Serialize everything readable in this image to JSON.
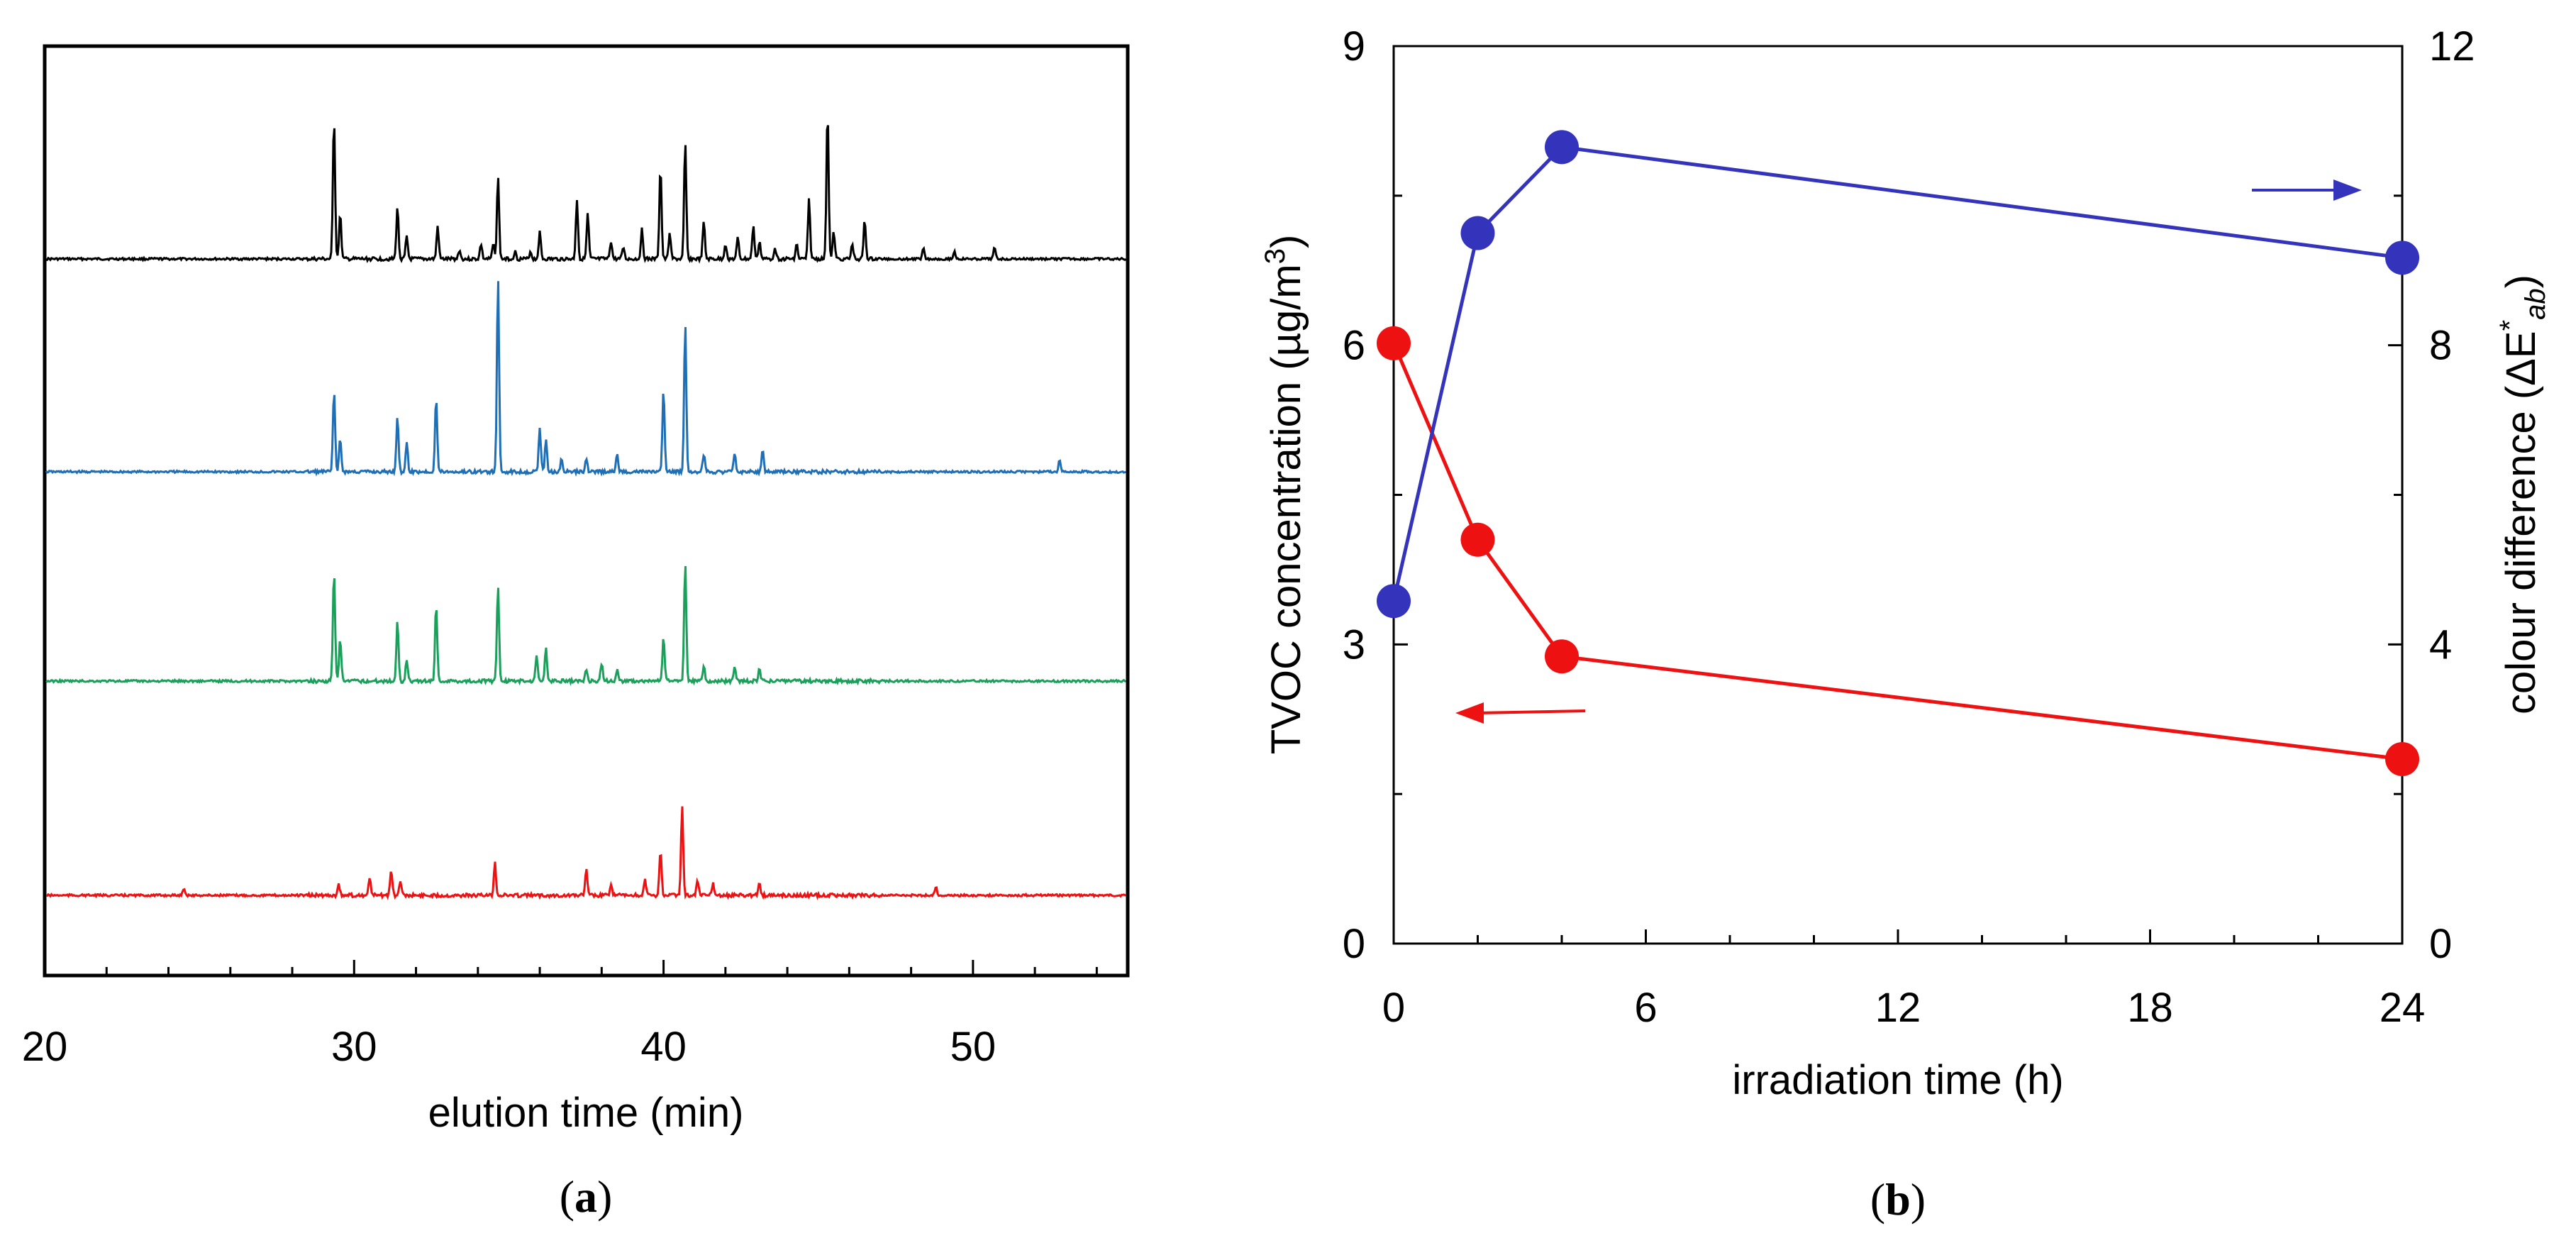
{
  "chart_data": [
    {
      "type": "line",
      "panel": "a",
      "panel_label": {
        "open": "(",
        "letter": "a",
        "close": ")"
      },
      "title": "",
      "xlabel": "elution time (min)",
      "ylabel": "",
      "xlim": [
        20,
        55
      ],
      "xticks": [
        "20",
        "30",
        "40",
        "50"
      ],
      "yticks": [],
      "series": [
        {
          "name": "trace-black",
          "color": "#000000",
          "baseline": 0.0,
          "peaks": [
            [
              29.35,
              95
            ],
            [
              29.55,
              30
            ],
            [
              31.4,
              35
            ],
            [
              31.7,
              15
            ],
            [
              32.7,
              22
            ],
            [
              33.4,
              6
            ],
            [
              34.1,
              10
            ],
            [
              34.5,
              10
            ],
            [
              34.65,
              55
            ],
            [
              35.2,
              5
            ],
            [
              35.7,
              5
            ],
            [
              36.0,
              18
            ],
            [
              37.2,
              40
            ],
            [
              37.55,
              30
            ],
            [
              38.3,
              12
            ],
            [
              38.7,
              8
            ],
            [
              39.3,
              20
            ],
            [
              39.9,
              62
            ],
            [
              40.2,
              18
            ],
            [
              40.7,
              78
            ],
            [
              41.3,
              25
            ],
            [
              42.0,
              10
            ],
            [
              42.4,
              14
            ],
            [
              42.9,
              22
            ],
            [
              43.1,
              12
            ],
            [
              43.6,
              8
            ],
            [
              44.3,
              10
            ],
            [
              44.7,
              40
            ],
            [
              45.3,
              100
            ],
            [
              45.5,
              18
            ],
            [
              46.1,
              10
            ],
            [
              46.5,
              26
            ],
            [
              48.4,
              8
            ],
            [
              49.4,
              5
            ],
            [
              50.7,
              8
            ]
          ]
        },
        {
          "name": "trace-blue",
          "color": "#1f6fb6",
          "baseline": 0.0,
          "peaks": [
            [
              29.35,
              55
            ],
            [
              29.55,
              22
            ],
            [
              31.4,
              38
            ],
            [
              31.7,
              20
            ],
            [
              32.65,
              50
            ],
            [
              34.65,
              130
            ],
            [
              36.0,
              30
            ],
            [
              36.2,
              22
            ],
            [
              36.7,
              8
            ],
            [
              37.5,
              10
            ],
            [
              38.5,
              12
            ],
            [
              40.0,
              55
            ],
            [
              40.7,
              100
            ],
            [
              41.3,
              12
            ],
            [
              42.3,
              12
            ],
            [
              43.2,
              15
            ],
            [
              52.8,
              8
            ]
          ]
        },
        {
          "name": "trace-green",
          "color": "#1aa05a",
          "baseline": 0.0,
          "peaks": [
            [
              29.35,
              75
            ],
            [
              29.55,
              28
            ],
            [
              31.4,
              40
            ],
            [
              31.7,
              15
            ],
            [
              32.65,
              52
            ],
            [
              34.65,
              65
            ],
            [
              35.9,
              18
            ],
            [
              36.2,
              22
            ],
            [
              37.5,
              8
            ],
            [
              38.0,
              12
            ],
            [
              38.5,
              8
            ],
            [
              40.0,
              30
            ],
            [
              40.7,
              80
            ],
            [
              41.3,
              10
            ],
            [
              42.3,
              9
            ],
            [
              43.1,
              8
            ]
          ]
        },
        {
          "name": "trace-red",
          "color": "#ee1111",
          "baseline": 0.0,
          "peaks": [
            [
              24.5,
              5
            ],
            [
              29.5,
              8
            ],
            [
              30.5,
              12
            ],
            [
              31.2,
              16
            ],
            [
              31.5,
              10
            ],
            [
              34.55,
              22
            ],
            [
              37.5,
              18
            ],
            [
              38.3,
              8
            ],
            [
              39.4,
              10
            ],
            [
              39.9,
              30
            ],
            [
              40.6,
              60
            ],
            [
              41.1,
              10
            ],
            [
              41.6,
              8
            ],
            [
              43.1,
              8
            ],
            [
              48.8,
              6
            ]
          ]
        }
      ]
    },
    {
      "type": "line",
      "panel": "b",
      "panel_label": {
        "open": "(",
        "letter": "b",
        "close": ")"
      },
      "title": "",
      "xlabel": "irradiation time (h)",
      "ylabel_left": "TVOC concentration (µg/m",
      "ylabel_left_sup": "3",
      "ylabel_left_close": ")",
      "ylabel_right": "colour difference (ΔE",
      "ylabel_right_sup": "*",
      "ylabel_right_sub": "ab",
      "ylabel_right_close": ")",
      "xlim": [
        0,
        24
      ],
      "ylim_left": [
        0,
        9
      ],
      "ylim_right": [
        0,
        12
      ],
      "xticks": [
        "0",
        "6",
        "12",
        "18",
        "24"
      ],
      "yticks_left": [
        "0",
        "3",
        "6",
        "9"
      ],
      "yticks_right": [
        "0",
        "4",
        "8",
        "12"
      ],
      "x": [
        0,
        2,
        4,
        24
      ],
      "series": [
        {
          "name": "TVOC concentration",
          "axis": "left",
          "color": "#ee1111",
          "values": [
            6.02,
            4.05,
            2.88,
            1.85
          ]
        },
        {
          "name": "colour difference",
          "axis": "right",
          "color": "#3333bb",
          "values": [
            4.58,
            9.5,
            10.65,
            9.17
          ]
        }
      ],
      "annotations": [
        {
          "name": "left-arrow",
          "color": "#ee1111",
          "points_to": "left axis"
        },
        {
          "name": "right-arrow",
          "color": "#3333bb",
          "points_to": "right axis"
        }
      ]
    }
  ]
}
